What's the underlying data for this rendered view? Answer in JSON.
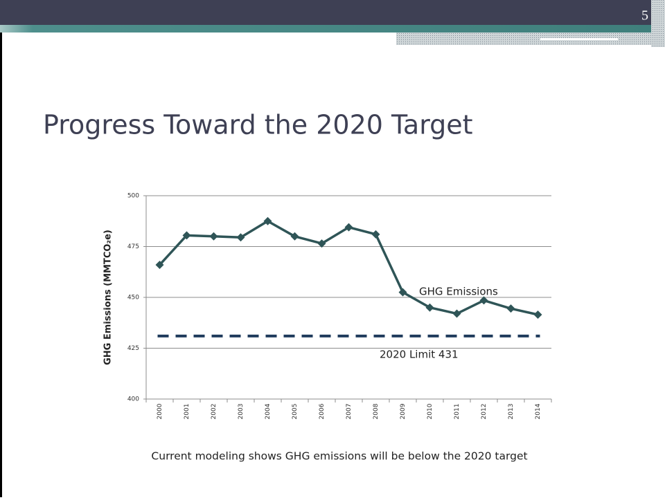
{
  "slide_number": "5",
  "chart_data": {
    "type": "line",
    "title": "Progress Toward the 2020 Target",
    "y_label": "GHG Emissions (MMTCO₂e)",
    "caption": "Current modeling shows GHG emissions will be below the 2020 target",
    "categories": [
      "2000",
      "2001",
      "2002",
      "2003",
      "2004",
      "2005",
      "2006",
      "2007",
      "2008",
      "2009",
      "2010",
      "2011",
      "2012",
      "2013",
      "2014"
    ],
    "series": [
      {
        "name": "GHG Emissions",
        "color": "#2f5557",
        "values": [
          466,
          480.5,
          480,
          479.5,
          487.5,
          480,
          476.5,
          484.5,
          481,
          452.5,
          445,
          442,
          448.5,
          444.5,
          441.5
        ]
      }
    ],
    "reference_line": {
      "value": 431,
      "label": "2020 Limit 431",
      "color": "#1f3b5c"
    },
    "ylim": [
      400,
      500
    ],
    "yticks": [
      400,
      425,
      450,
      475,
      500
    ],
    "grid": true
  }
}
